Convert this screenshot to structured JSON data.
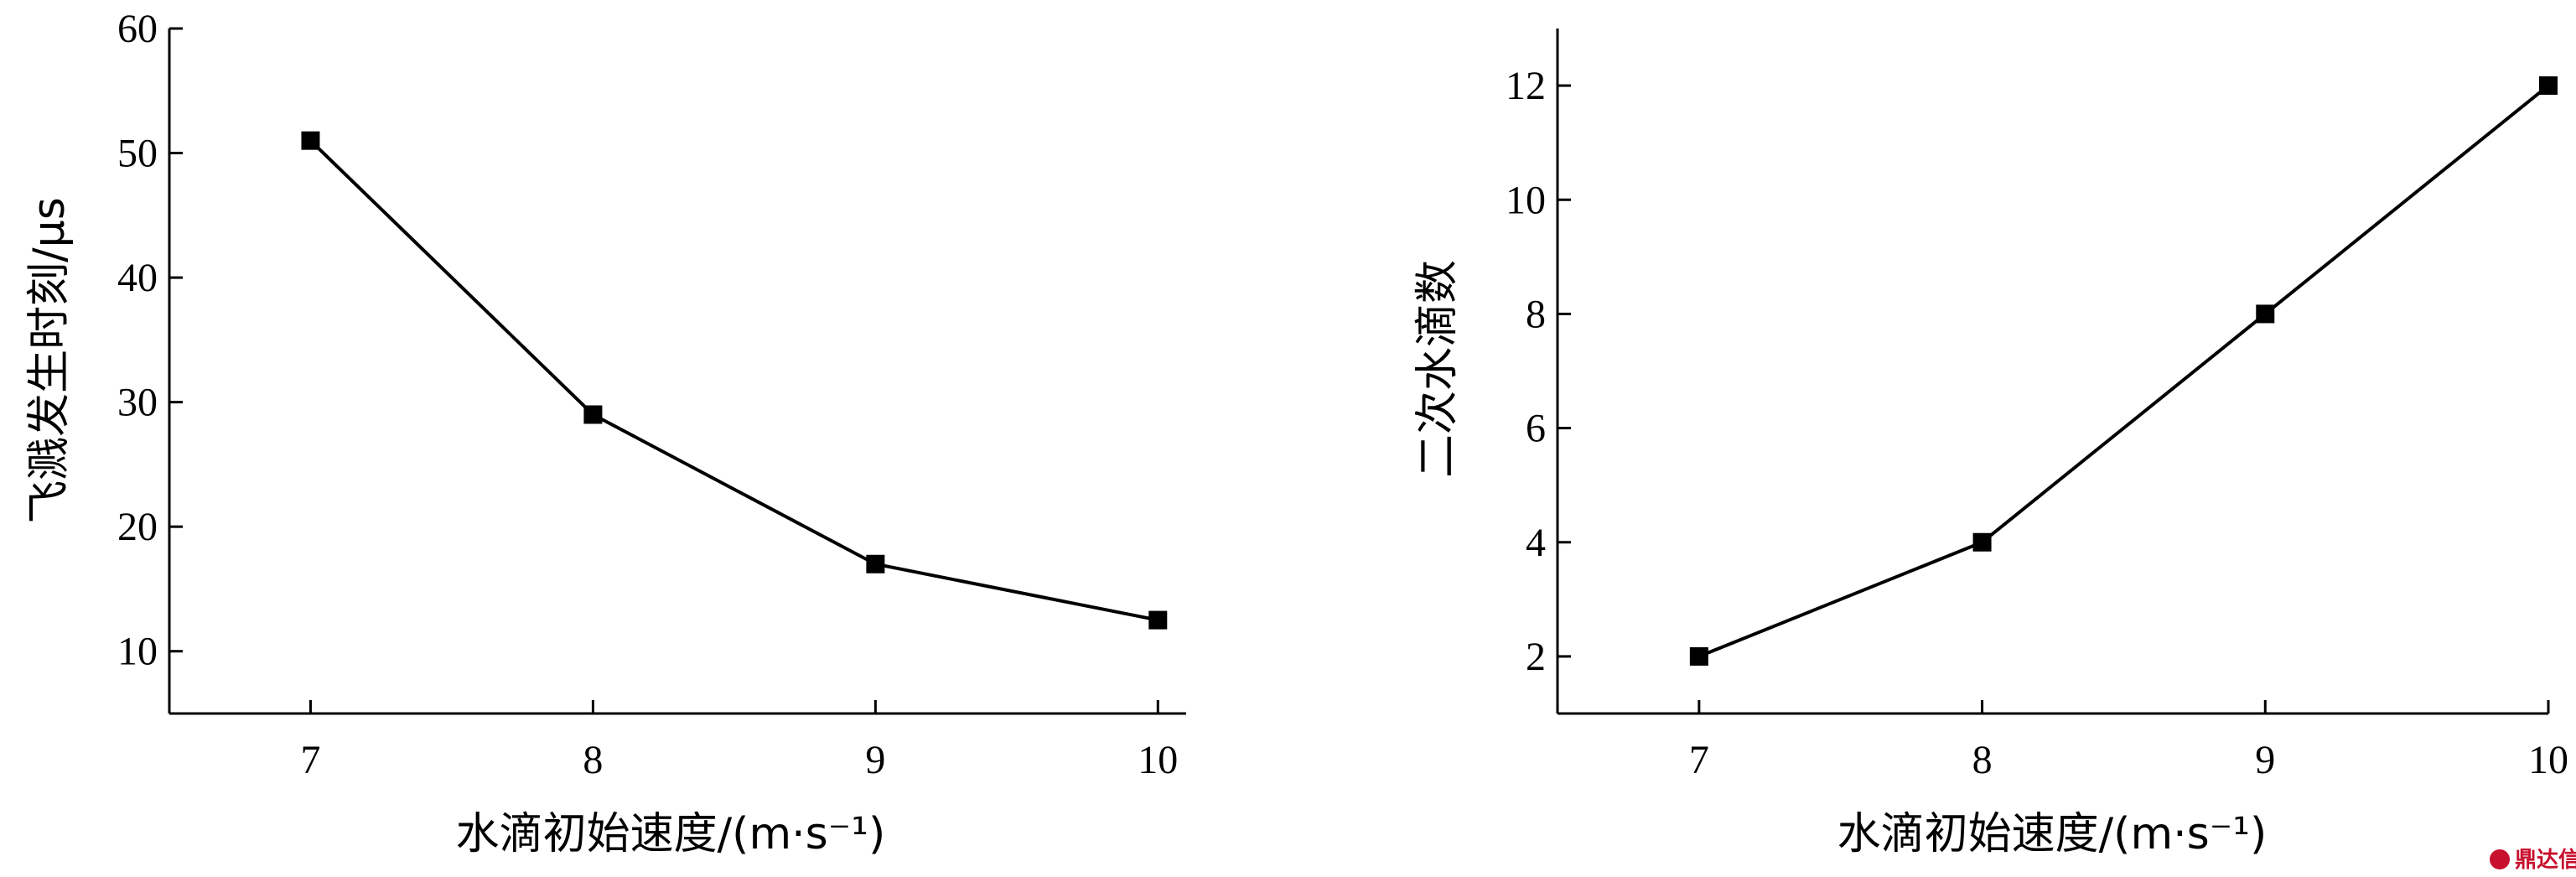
{
  "chart_data": [
    {
      "type": "line",
      "title": "",
      "xlabel": "水滴初始速度/(m·s⁻¹)",
      "ylabel": "飞溅发生时刻/μs",
      "x": [
        7,
        8,
        9,
        10
      ],
      "xticks": [
        "7",
        "8",
        "9",
        "10"
      ],
      "xlim": [
        6.5,
        10.1
      ],
      "yticks": [
        "10",
        "20",
        "30",
        "40",
        "50",
        "60"
      ],
      "yticks_values": [
        10,
        20,
        30,
        40,
        50,
        60
      ],
      "ylim": [
        5,
        60
      ],
      "grid": false,
      "marker": "square",
      "series": [
        {
          "values": [
            51,
            29,
            17,
            12.5
          ]
        }
      ]
    },
    {
      "type": "line",
      "title": "",
      "xlabel": "水滴初始速度/(m·s⁻¹)",
      "ylabel": "二次水滴数",
      "x": [
        7,
        8,
        9,
        10
      ],
      "xticks": [
        "7",
        "8",
        "9",
        "10"
      ],
      "xlim": [
        6.5,
        10
      ],
      "yticks": [
        "2",
        "4",
        "6",
        "8",
        "10",
        "12"
      ],
      "yticks_values": [
        2,
        4,
        6,
        8,
        10,
        12
      ],
      "ylim": [
        1,
        13
      ],
      "grid": false,
      "marker": "square",
      "series": [
        {
          "values": [
            2,
            4,
            8,
            12
          ]
        }
      ]
    }
  ],
  "watermark": {
    "text": "鼎达信",
    "icon": "dingdaxin-logo-icon",
    "color": "#c8102e"
  }
}
